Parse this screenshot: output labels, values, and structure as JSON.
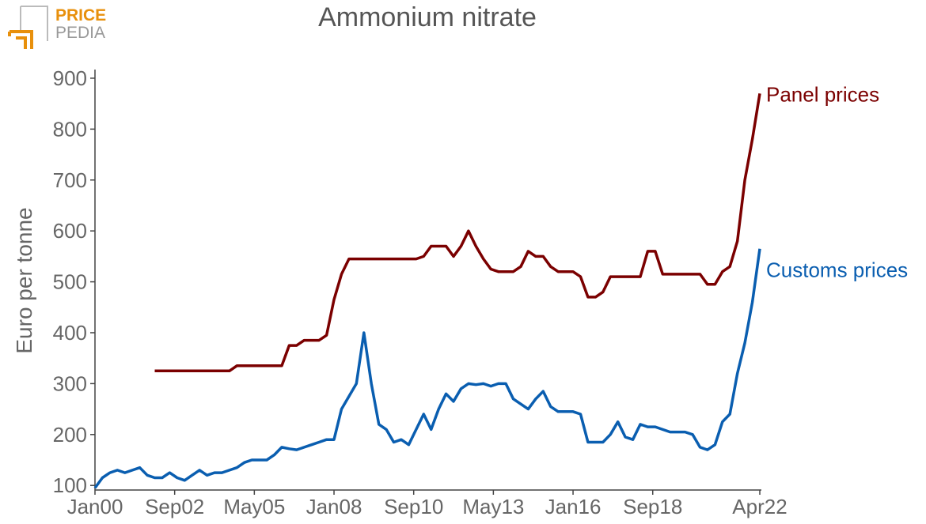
{
  "logo": {
    "line1": "PRICE",
    "line2": "PEDIA"
  },
  "chart_data": {
    "type": "line",
    "title": "Ammonium nitrate",
    "y_label": "Euro per tonne",
    "x": [
      "2000-01",
      "2000-04",
      "2000-07",
      "2000-10",
      "2001-01",
      "2001-04",
      "2001-07",
      "2001-10",
      "2002-01",
      "2002-04",
      "2002-07",
      "2002-10",
      "2003-01",
      "2003-04",
      "2003-07",
      "2003-10",
      "2004-01",
      "2004-04",
      "2004-07",
      "2004-10",
      "2005-01",
      "2005-04",
      "2005-07",
      "2005-10",
      "2006-01",
      "2006-04",
      "2006-07",
      "2006-10",
      "2007-01",
      "2007-04",
      "2007-07",
      "2007-10",
      "2008-01",
      "2008-04",
      "2008-07",
      "2008-10",
      "2009-01",
      "2009-04",
      "2009-07",
      "2009-10",
      "2010-01",
      "2010-04",
      "2010-07",
      "2010-10",
      "2011-01",
      "2011-04",
      "2011-07",
      "2011-10",
      "2012-01",
      "2012-04",
      "2012-07",
      "2012-10",
      "2013-01",
      "2013-04",
      "2013-07",
      "2013-10",
      "2014-01",
      "2014-04",
      "2014-07",
      "2014-10",
      "2015-01",
      "2015-04",
      "2015-07",
      "2015-10",
      "2016-01",
      "2016-04",
      "2016-07",
      "2016-10",
      "2017-01",
      "2017-04",
      "2017-07",
      "2017-10",
      "2018-01",
      "2018-04",
      "2018-07",
      "2018-10",
      "2019-01",
      "2019-04",
      "2019-07",
      "2019-10",
      "2020-01",
      "2020-04",
      "2020-07",
      "2020-10",
      "2021-01",
      "2021-04",
      "2021-07",
      "2021-10",
      "2022-01",
      "2022-04"
    ],
    "series": [
      {
        "name": "Panel prices",
        "color": "#7b0000",
        "values": [
          null,
          null,
          null,
          null,
          null,
          null,
          null,
          null,
          325,
          325,
          325,
          325,
          325,
          325,
          325,
          325,
          325,
          325,
          325,
          335,
          335,
          335,
          335,
          335,
          335,
          335,
          375,
          375,
          385,
          385,
          385,
          395,
          465,
          515,
          545,
          545,
          545,
          545,
          545,
          545,
          545,
          545,
          545,
          545,
          550,
          570,
          570,
          570,
          550,
          570,
          600,
          570,
          545,
          525,
          520,
          520,
          520,
          530,
          560,
          550,
          550,
          530,
          520,
          520,
          520,
          510,
          470,
          470,
          480,
          510,
          510,
          510,
          510,
          510,
          560,
          560,
          515,
          515,
          515,
          515,
          515,
          515,
          495,
          495,
          520,
          530,
          580,
          700,
          780,
          870
        ]
      },
      {
        "name": "Customs prices",
        "color": "#0a5eb0",
        "values": [
          95,
          115,
          125,
          130,
          125,
          130,
          135,
          120,
          115,
          115,
          125,
          115,
          110,
          120,
          130,
          120,
          125,
          125,
          130,
          135,
          145,
          150,
          150,
          150,
          160,
          175,
          172,
          170,
          175,
          180,
          185,
          190,
          190,
          250,
          275,
          300,
          400,
          300,
          220,
          210,
          185,
          190,
          180,
          210,
          240,
          210,
          250,
          280,
          265,
          290,
          300,
          298,
          300,
          295,
          300,
          300,
          270,
          260,
          250,
          270,
          285,
          255,
          245,
          245,
          245,
          240,
          185,
          185,
          185,
          200,
          225,
          195,
          190,
          220,
          215,
          215,
          210,
          205,
          205,
          205,
          200,
          175,
          170,
          180,
          225,
          240,
          320,
          380,
          460,
          565
        ]
      }
    ],
    "xlim": [
      "2000-01",
      "2022-04"
    ],
    "xticks": [
      {
        "value": "2000-01",
        "label": "Jan00"
      },
      {
        "value": "2002-09",
        "label": "Sep02"
      },
      {
        "value": "2005-05",
        "label": "May05"
      },
      {
        "value": "2008-01",
        "label": "Jan08"
      },
      {
        "value": "2010-09",
        "label": "Sep10"
      },
      {
        "value": "2013-05",
        "label": "May13"
      },
      {
        "value": "2016-01",
        "label": "Jan16"
      },
      {
        "value": "2018-09",
        "label": "Sep18"
      },
      {
        "value": "2022-04",
        "label": "Apr22"
      }
    ],
    "ylim": [
      91,
      917
    ],
    "yticks": [
      100,
      200,
      300,
      400,
      500,
      600,
      700,
      800,
      900
    ]
  }
}
